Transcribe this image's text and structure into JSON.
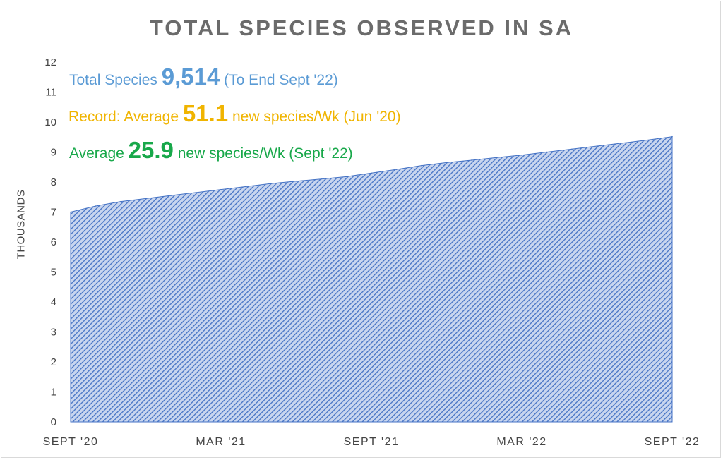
{
  "chart_data": {
    "type": "area",
    "title": "TOTAL SPECIES OBSERVED IN SA",
    "ylabel": "THOUSANDS",
    "xlabel": "",
    "ylim": [
      0,
      12
    ],
    "y_ticks": [
      "0",
      "1",
      "2",
      "3",
      "4",
      "5",
      "6",
      "7",
      "8",
      "9",
      "10",
      "11",
      "12"
    ],
    "x_tick_labels": [
      "SEPT '20",
      "MAR '21",
      "SEPT '21",
      "MAR '22",
      "SEPT '22"
    ],
    "grid": false,
    "legend": "none",
    "series": [
      {
        "color": "#4472c4",
        "x": [
          "Sep 2020",
          "Oct 2020",
          "Nov 2020",
          "Dec 2020",
          "Jan 2021",
          "Feb 2021",
          "Mar 2021",
          "Apr 2021",
          "May 2021",
          "Jun 2021",
          "Jul 2021",
          "Aug 2021",
          "Sep 2021",
          "Oct 2021",
          "Nov 2021",
          "Dec 2021",
          "Jan 2022",
          "Feb 2022",
          "Mar 2022",
          "Apr 2022",
          "May 2022",
          "Jun 2022",
          "Jul 2022",
          "Aug 2022",
          "Sep 2022"
        ],
        "values": [
          7.0,
          7.2,
          7.35,
          7.45,
          7.55,
          7.65,
          7.75,
          7.85,
          7.95,
          8.03,
          8.1,
          8.18,
          8.3,
          8.42,
          8.55,
          8.65,
          8.73,
          8.82,
          8.9,
          9.0,
          9.1,
          9.2,
          9.3,
          9.4,
          9.514
        ]
      }
    ],
    "annotations": [
      {
        "prefix": "Total Species ",
        "value": "9,514",
        "suffix": " (To End Sept '22)",
        "color": "#5b9bd5"
      },
      {
        "prefix": "Record: Average ",
        "value": "51.1",
        "suffix": " new species/Wk (Jun '20)",
        "color": "#f0b400"
      },
      {
        "prefix": "Average ",
        "value": "25.9",
        "suffix": " new species/Wk (Sept '22)",
        "color": "#18a84a"
      }
    ]
  }
}
